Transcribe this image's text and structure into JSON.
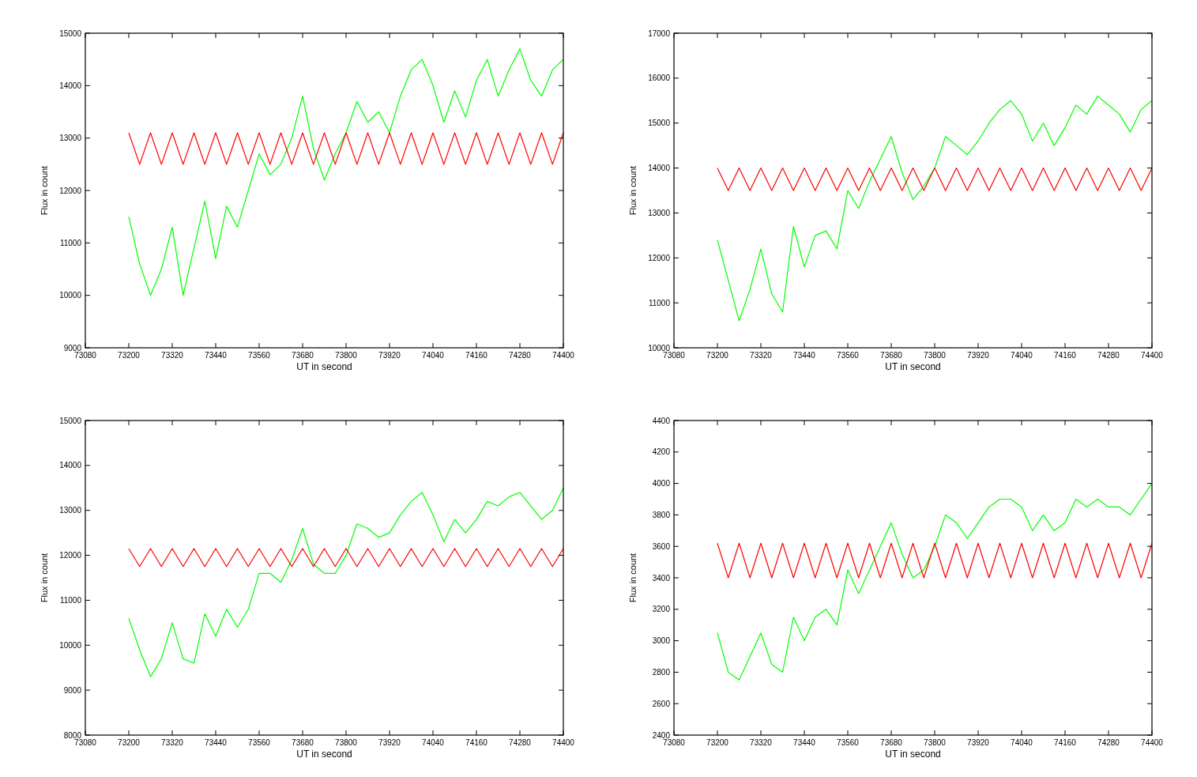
{
  "chart_data": [
    {
      "type": "line",
      "xlabel": "UT in second",
      "ylabel": "Flux in count",
      "xlim": [
        73080,
        74400
      ],
      "xticks": [
        73080,
        73200,
        73320,
        73440,
        73560,
        73680,
        73800,
        73920,
        74040,
        74160,
        74280,
        74400
      ],
      "ylim": [
        9000,
        15000
      ],
      "yticks": [
        9000,
        10000,
        11000,
        12000,
        13000,
        14000,
        15000
      ],
      "grid": false,
      "x": [
        73200,
        73230,
        73260,
        73290,
        73320,
        73350,
        73380,
        73410,
        73440,
        73470,
        73500,
        73530,
        73560,
        73590,
        73620,
        73650,
        73680,
        73710,
        73740,
        73770,
        73800,
        73830,
        73860,
        73890,
        73920,
        73950,
        73980,
        74010,
        74040,
        74070,
        74100,
        74130,
        74160,
        74190,
        74220,
        74250,
        74280,
        74310,
        74340,
        74370,
        74400
      ],
      "series": [
        {
          "color": "#00ff00",
          "values": [
            11500,
            10600,
            10000,
            10500,
            11300,
            10000,
            10900,
            11800,
            10700,
            11700,
            11300,
            12000,
            12700,
            12300,
            12500,
            13000,
            13800,
            12800,
            12200,
            12700,
            13100,
            13700,
            13300,
            13500,
            13100,
            13800,
            14300,
            14500,
            14000,
            13300,
            13900,
            13400,
            14100,
            14500,
            13800,
            14300,
            14700,
            14100,
            13800,
            14300,
            14500
          ]
        },
        {
          "color": "#ff0000",
          "values": [
            13100,
            12500,
            13100,
            12500,
            13100,
            12500,
            13100,
            12500,
            13100,
            12500,
            13100,
            12500,
            13100,
            12500,
            13100,
            12500,
            13100,
            12500,
            13100,
            12500,
            13100,
            12500,
            13100,
            12500,
            13100,
            12500,
            13100,
            12500,
            13100,
            12500,
            13100,
            12500,
            13100,
            12500,
            13100,
            12500,
            13100,
            12500,
            13100,
            12500,
            13100
          ]
        }
      ]
    },
    {
      "type": "line",
      "xlabel": "UT in second",
      "ylabel": "Flux in count",
      "xlim": [
        73080,
        74400
      ],
      "xticks": [
        73080,
        73200,
        73320,
        73440,
        73560,
        73680,
        73800,
        73920,
        74040,
        74160,
        74280,
        74400
      ],
      "ylim": [
        10000,
        17000
      ],
      "yticks": [
        10000,
        11000,
        12000,
        13000,
        14000,
        15000,
        16000,
        17000
      ],
      "grid": false,
      "x": [
        73200,
        73230,
        73260,
        73290,
        73320,
        73350,
        73380,
        73410,
        73440,
        73470,
        73500,
        73530,
        73560,
        73590,
        73620,
        73650,
        73680,
        73710,
        73740,
        73770,
        73800,
        73830,
        73860,
        73890,
        73920,
        73950,
        73980,
        74010,
        74040,
        74070,
        74100,
        74130,
        74160,
        74190,
        74220,
        74250,
        74280,
        74310,
        74340,
        74370,
        74400
      ],
      "series": [
        {
          "color": "#00ff00",
          "values": [
            12400,
            11500,
            10600,
            11300,
            12200,
            11200,
            10800,
            12700,
            11800,
            12500,
            12600,
            12200,
            13500,
            13100,
            13700,
            14200,
            14700,
            13900,
            13300,
            13600,
            14000,
            14700,
            14500,
            14300,
            14600,
            15000,
            15300,
            15500,
            15200,
            14600,
            15000,
            14500,
            14900,
            15400,
            15200,
            15600,
            15400,
            15200,
            14800,
            15300,
            15500
          ]
        },
        {
          "color": "#ff0000",
          "values": [
            14000,
            13500,
            14000,
            13500,
            14000,
            13500,
            14000,
            13500,
            14000,
            13500,
            14000,
            13500,
            14000,
            13500,
            14000,
            13500,
            14000,
            13500,
            14000,
            13500,
            14000,
            13500,
            14000,
            13500,
            14000,
            13500,
            14000,
            13500,
            14000,
            13500,
            14000,
            13500,
            14000,
            13500,
            14000,
            13500,
            14000,
            13500,
            14000,
            13500,
            14000
          ]
        }
      ]
    },
    {
      "type": "line",
      "xlabel": "UT in second",
      "ylabel": "Flux in count",
      "xlim": [
        73080,
        74400
      ],
      "xticks": [
        73080,
        73200,
        73320,
        73440,
        73560,
        73680,
        73800,
        73920,
        74040,
        74160,
        74280,
        74400
      ],
      "ylim": [
        8000,
        15000
      ],
      "yticks": [
        8000,
        9000,
        10000,
        11000,
        12000,
        13000,
        14000,
        15000
      ],
      "grid": false,
      "x": [
        73200,
        73230,
        73260,
        73290,
        73320,
        73350,
        73380,
        73410,
        73440,
        73470,
        73500,
        73530,
        73560,
        73590,
        73620,
        73650,
        73680,
        73710,
        73740,
        73770,
        73800,
        73830,
        73860,
        73890,
        73920,
        73950,
        73980,
        74010,
        74040,
        74070,
        74100,
        74130,
        74160,
        74190,
        74220,
        74250,
        74280,
        74310,
        74340,
        74370,
        74400
      ],
      "series": [
        {
          "color": "#00ff00",
          "values": [
            10600,
            9900,
            9300,
            9700,
            10500,
            9700,
            9600,
            10700,
            10200,
            10800,
            10400,
            10800,
            11600,
            11600,
            11400,
            11900,
            12600,
            11800,
            11600,
            11600,
            12000,
            12700,
            12600,
            12400,
            12500,
            12900,
            13200,
            13400,
            12900,
            12300,
            12800,
            12500,
            12800,
            13200,
            13100,
            13300,
            13400,
            13100,
            12800,
            13000,
            13500
          ]
        },
        {
          "color": "#ff0000",
          "values": [
            12150,
            11750,
            12150,
            11750,
            12150,
            11750,
            12150,
            11750,
            12150,
            11750,
            12150,
            11750,
            12150,
            11750,
            12150,
            11750,
            12150,
            11750,
            12150,
            11750,
            12150,
            11750,
            12150,
            11750,
            12150,
            11750,
            12150,
            11750,
            12150,
            11750,
            12150,
            11750,
            12150,
            11750,
            12150,
            11750,
            12150,
            11750,
            12150,
            11750,
            12150
          ]
        }
      ]
    },
    {
      "type": "line",
      "xlabel": "UT in second",
      "ylabel": "Flux in count",
      "xlim": [
        73080,
        74400
      ],
      "xticks": [
        73080,
        73200,
        73320,
        73440,
        73560,
        73680,
        73800,
        73920,
        74040,
        74160,
        74280,
        74400
      ],
      "ylim": [
        2400,
        4400
      ],
      "yticks": [
        2400,
        2600,
        2800,
        3000,
        3200,
        3400,
        3600,
        3800,
        4000,
        4200,
        4400
      ],
      "grid": false,
      "x": [
        73200,
        73230,
        73260,
        73290,
        73320,
        73350,
        73380,
        73410,
        73440,
        73470,
        73500,
        73530,
        73560,
        73590,
        73620,
        73650,
        73680,
        73710,
        73740,
        73770,
        73800,
        73830,
        73860,
        73890,
        73920,
        73950,
        73980,
        74010,
        74040,
        74070,
        74100,
        74130,
        74160,
        74190,
        74220,
        74250,
        74280,
        74310,
        74340,
        74370,
        74400
      ],
      "series": [
        {
          "color": "#00ff00",
          "values": [
            3050,
            2800,
            2750,
            2900,
            3050,
            2850,
            2800,
            3150,
            3000,
            3150,
            3200,
            3100,
            3450,
            3300,
            3450,
            3600,
            3750,
            3550,
            3400,
            3450,
            3600,
            3800,
            3750,
            3650,
            3750,
            3850,
            3900,
            3900,
            3850,
            3700,
            3800,
            3700,
            3750,
            3900,
            3850,
            3900,
            3850,
            3850,
            3800,
            3900,
            4000
          ]
        },
        {
          "color": "#ff0000",
          "values": [
            3620,
            3400,
            3620,
            3400,
            3620,
            3400,
            3620,
            3400,
            3620,
            3400,
            3620,
            3400,
            3620,
            3400,
            3620,
            3400,
            3620,
            3400,
            3620,
            3400,
            3620,
            3400,
            3620,
            3400,
            3620,
            3400,
            3620,
            3400,
            3620,
            3400,
            3620,
            3400,
            3620,
            3400,
            3620,
            3400,
            3620,
            3400,
            3620,
            3400,
            3620
          ]
        }
      ]
    }
  ]
}
